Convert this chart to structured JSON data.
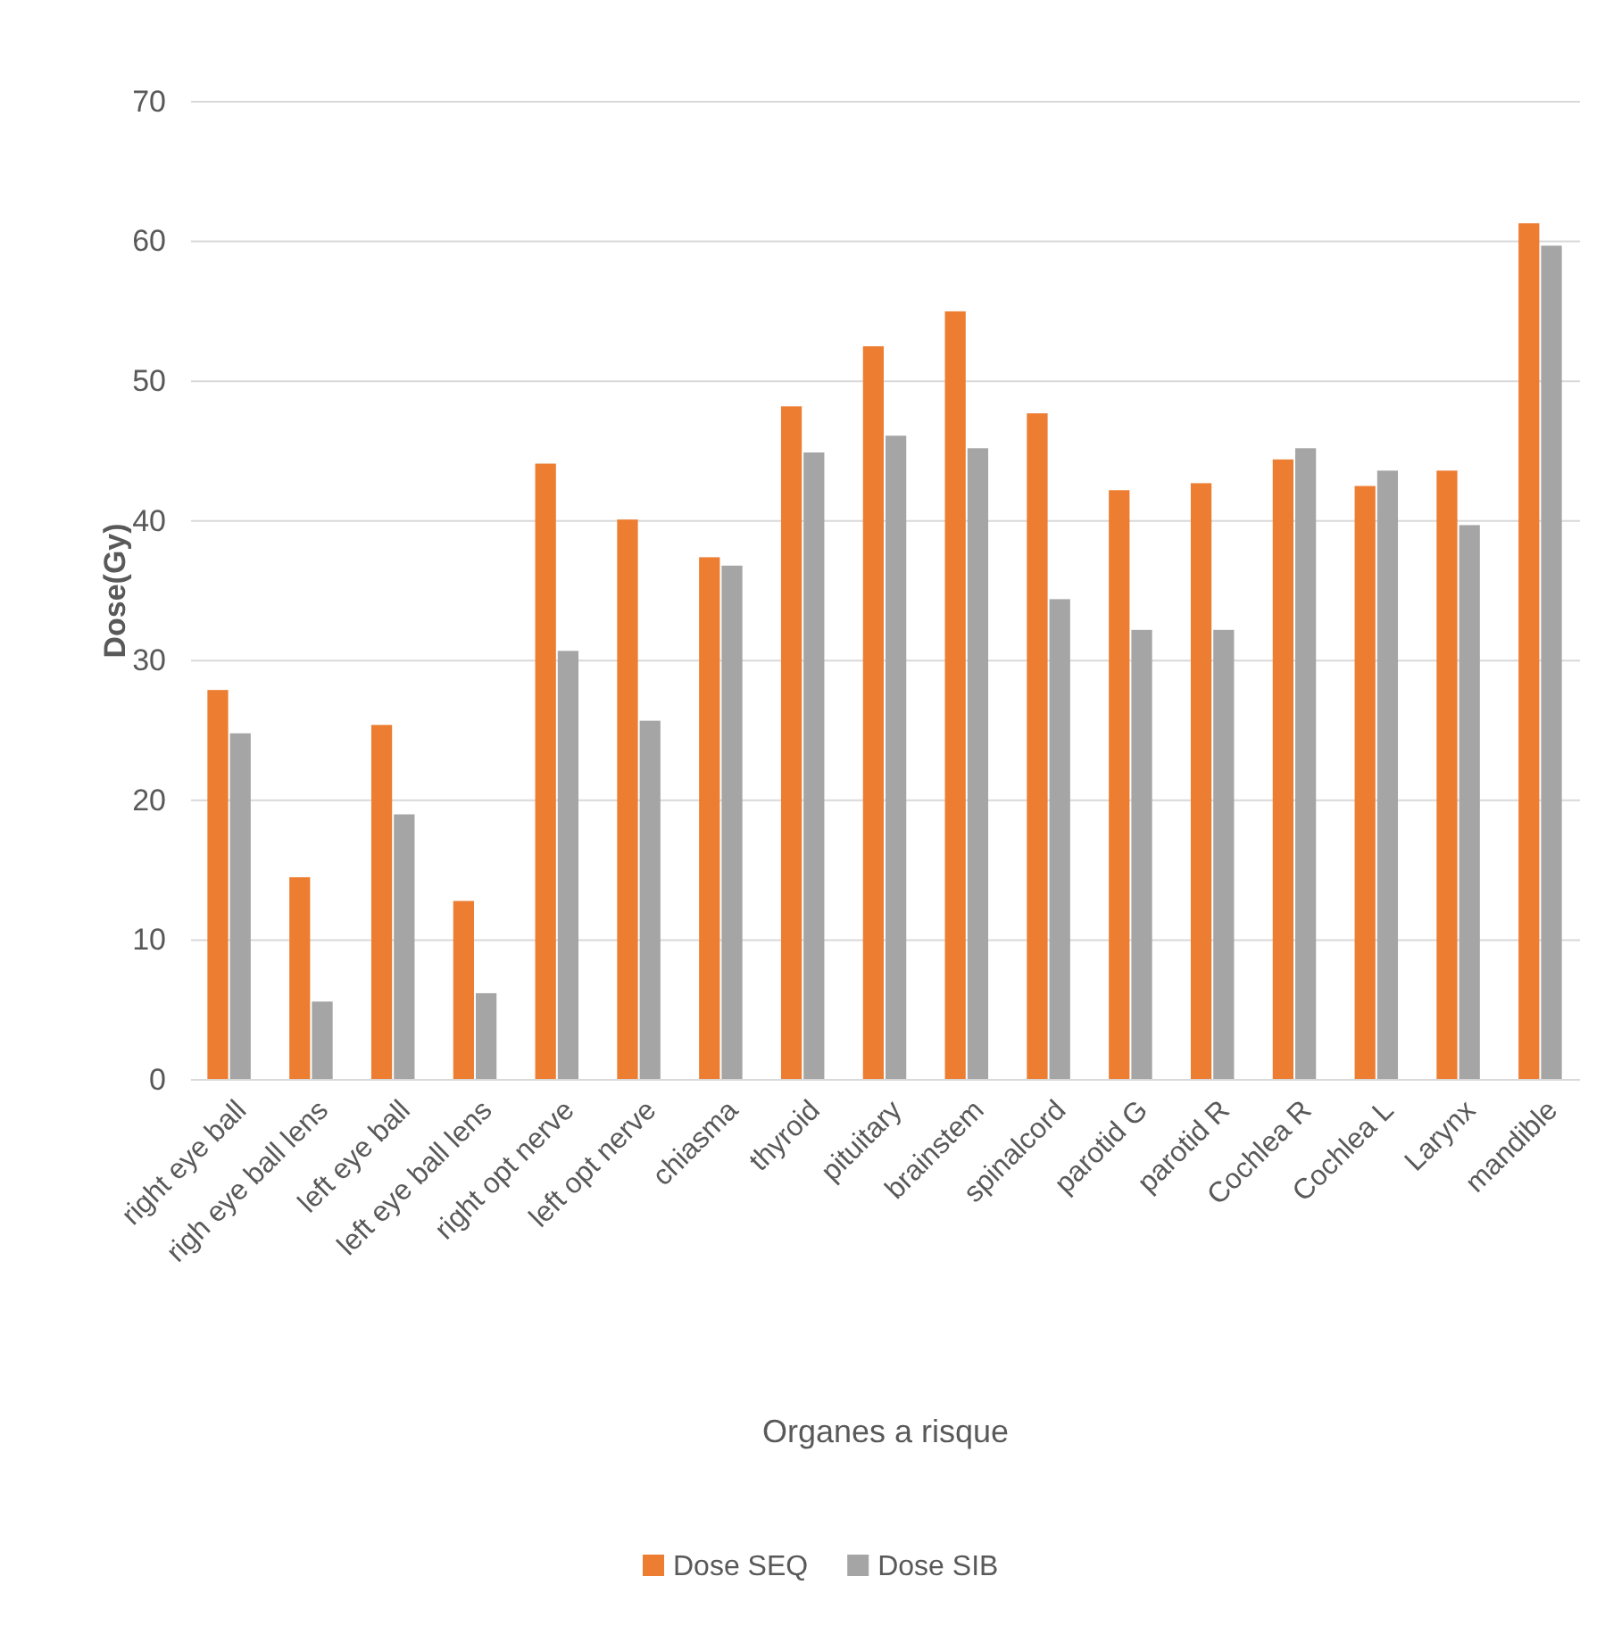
{
  "chart_data": {
    "type": "bar",
    "xlabel": "Organes a risque",
    "ylabel": "Dose(Gy)",
    "categories": [
      "right eye ball",
      "righ eye ball lens",
      "left eye ball",
      "left eye ball lens",
      "right opt nerve",
      "left opt nerve",
      "chiasma",
      "thyroid",
      "pituitary",
      "brainstem",
      "spinalcord",
      "parotid G",
      "parotid R",
      "Cochlea R",
      "Cochlea L",
      "Larynx",
      "mandible"
    ],
    "series": [
      {
        "name": "Dose SEQ",
        "color": "#ed7d31",
        "values": [
          27.9,
          14.5,
          25.4,
          12.8,
          44.1,
          40.1,
          37.4,
          48.2,
          52.5,
          55.0,
          47.7,
          42.2,
          42.7,
          44.4,
          42.5,
          43.6,
          61.3
        ]
      },
      {
        "name": "Dose SIB",
        "color": "#a5a5a5",
        "values": [
          24.8,
          5.6,
          19.0,
          6.2,
          30.7,
          25.7,
          36.8,
          44.9,
          46.1,
          45.2,
          34.4,
          32.2,
          32.2,
          45.2,
          43.6,
          39.7,
          59.7
        ]
      }
    ],
    "ylim": [
      0,
      70
    ],
    "yticks": [
      0,
      10,
      20,
      30,
      40,
      50,
      60,
      70
    ],
    "grid": "y",
    "legend": "bottom"
  }
}
